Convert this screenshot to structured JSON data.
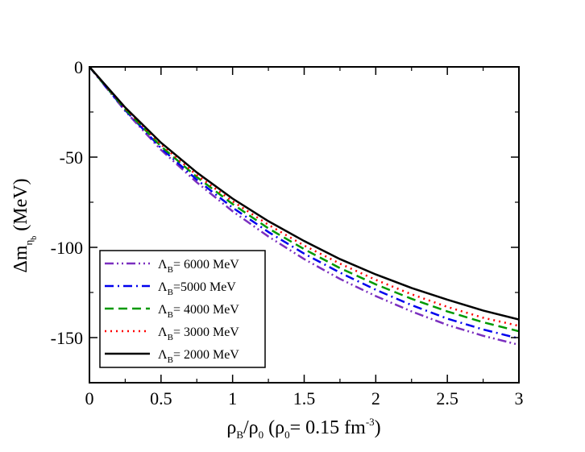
{
  "chart_data": {
    "type": "line",
    "xlabel": {
      "main1": "ρ",
      "sub1": "B",
      "main2": "/ρ",
      "sub2": "0",
      "main3": "  (ρ",
      "sub3": "0",
      "main4": "= 0.15 fm",
      "sup4": "-3",
      "main5": ")"
    },
    "ylabel": {
      "main1": "Δm",
      "sub1": "η",
      "subsub1": "b",
      "main2": "  (MeV)"
    },
    "xlim": [
      0,
      3
    ],
    "ylim": [
      -175,
      0
    ],
    "xticks": [
      0,
      0.5,
      1,
      1.5,
      2,
      2.5,
      3
    ],
    "xtick_labels": [
      "0",
      "0.5",
      "1",
      "1.5",
      "2",
      "2.5",
      "3"
    ],
    "yticks": [
      0,
      -50,
      -100,
      -150
    ],
    "ytick_labels": [
      "0",
      "-50",
      "-100",
      "-150"
    ],
    "grid": false,
    "legend_position": "bottom-left",
    "x": [
      0,
      0.25,
      0.5,
      0.75,
      1.0,
      1.25,
      1.5,
      1.75,
      2.0,
      2.25,
      2.5,
      2.75,
      3.0
    ],
    "series": [
      {
        "name": "Λ_B= 6000 MeV",
        "legend": {
          "sym": "Λ",
          "sub": "B",
          "rest": "= 6000 MeV"
        },
        "color": "#7b2fbf",
        "dash": "dashdotdot",
        "values": [
          0,
          -24.5,
          -46.0,
          -64.0,
          -80.0,
          -94.0,
          -106.5,
          -117.5,
          -127.0,
          -135.5,
          -143.0,
          -149.0,
          -154.0
        ]
      },
      {
        "name": "Λ_B=5000 MeV",
        "legend": {
          "sym": "Λ",
          "sub": "B",
          "rest": "=5000 MeV"
        },
        "color": "#0000ee",
        "dash": "dashdot",
        "values": [
          0,
          -24.0,
          -45.0,
          -62.5,
          -78.0,
          -91.5,
          -103.5,
          -114.0,
          -123.5,
          -132.0,
          -139.5,
          -145.5,
          -150.5
        ]
      },
      {
        "name": "Λ_B= 4000 MeV",
        "legend": {
          "sym": "Λ",
          "sub": "B",
          "rest": "= 4000 MeV"
        },
        "color": "#009900",
        "dash": "dash",
        "values": [
          0,
          -23.5,
          -44.0,
          -61.0,
          -76.0,
          -89.5,
          -101.0,
          -111.5,
          -120.5,
          -128.5,
          -135.5,
          -141.5,
          -146.5
        ]
      },
      {
        "name": "Λ_B= 3000 MeV",
        "legend": {
          "sym": "Λ",
          "sub": "B",
          "rest": "= 3000 MeV"
        },
        "color": "#ff0000",
        "dash": "dot",
        "values": [
          0,
          -23.0,
          -43.0,
          -60.0,
          -74.5,
          -87.5,
          -99.0,
          -109.0,
          -118.0,
          -126.0,
          -133.0,
          -139.0,
          -143.5
        ]
      },
      {
        "name": "Λ_B= 2000 MeV",
        "legend": {
          "sym": "Λ",
          "sub": "B",
          "rest": "= 2000 MeV"
        },
        "color": "#000000",
        "dash": "solid",
        "values": [
          0,
          -22.5,
          -42.0,
          -58.5,
          -73.0,
          -85.5,
          -96.5,
          -106.5,
          -115.0,
          -122.5,
          -129.0,
          -135.0,
          -140.0
        ]
      }
    ]
  }
}
